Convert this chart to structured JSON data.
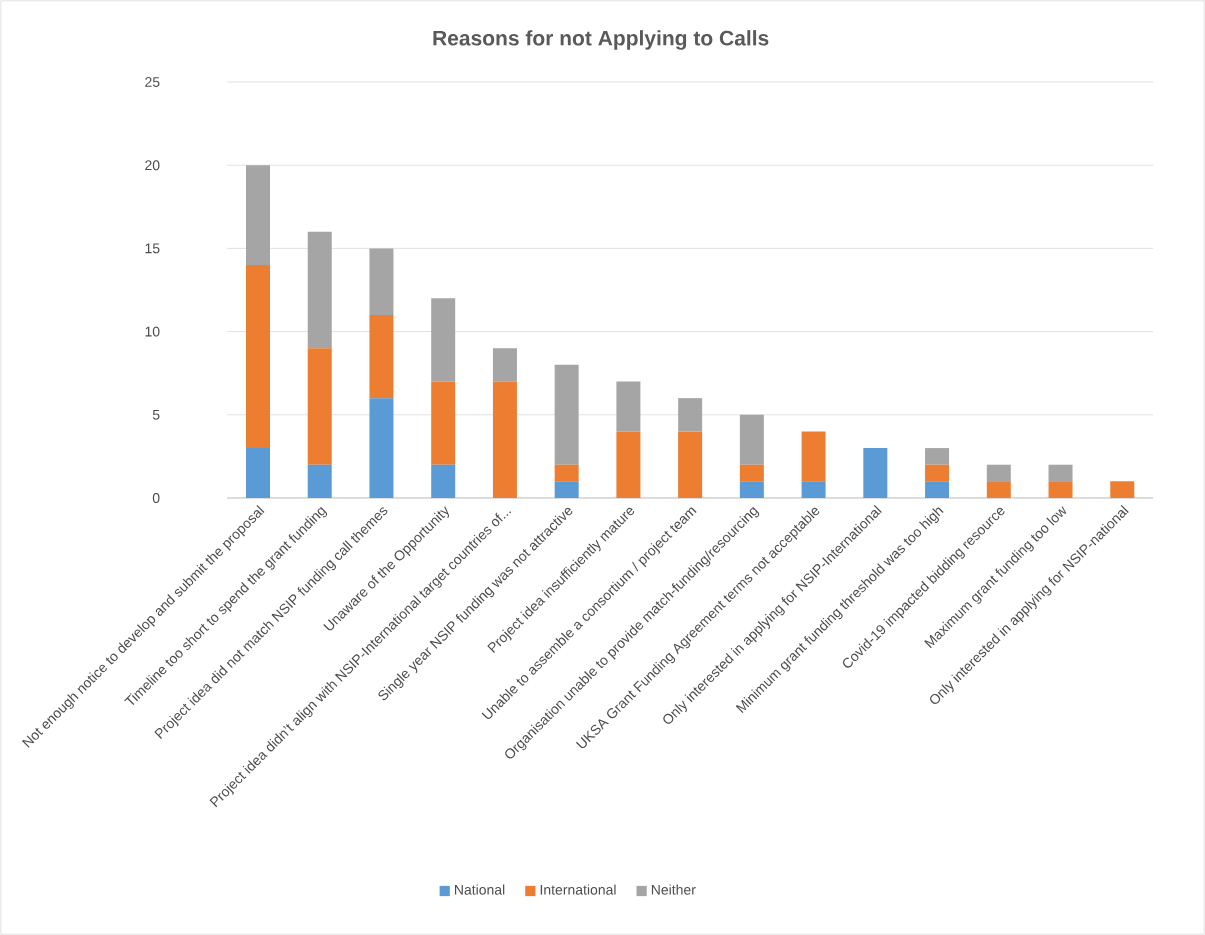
{
  "chart_data": {
    "type": "bar",
    "stacked": true,
    "title": "Reasons for not Applying to Calls",
    "categories": [
      "Not enough notice to develop and submit the proposal",
      "Timeline too short to spend the grant funding",
      "Project idea did not match NSIP funding call themes",
      "Unaware of the Opportunity",
      "Project idea didn’t align with NSIP-International target countries of...",
      "Single year NSIP funding was not attractive",
      "Project idea insufficiently mature",
      "Unable to assemble a consortium / project team",
      "Organisation unable to provide match-funding/resourcing",
      "UKSA Grant Funding Agreement terms not acceptable",
      "Only interested in applying for NSIP-International",
      "Minimum grant funding threshold was too high",
      "Covid-19 impacted bidding resource",
      "Maximum grant funding too low",
      "Only interested in applying for NSIP-national"
    ],
    "series": [
      {
        "name": "National",
        "color": "#5b9bd5",
        "values": [
          3,
          2,
          6,
          2,
          0,
          1,
          0,
          0,
          1,
          1,
          3,
          1,
          0,
          0,
          0
        ]
      },
      {
        "name": "International",
        "color": "#ed7d31",
        "values": [
          11,
          7,
          5,
          5,
          7,
          1,
          4,
          4,
          1,
          3,
          0,
          1,
          1,
          1,
          1
        ]
      },
      {
        "name": "Neither",
        "color": "#a5a5a5",
        "values": [
          6,
          7,
          4,
          5,
          2,
          6,
          3,
          2,
          3,
          0,
          0,
          1,
          1,
          1,
          0
        ]
      }
    ],
    "ylim": [
      0,
      25
    ],
    "yticks": [
      0,
      5,
      10,
      15,
      20,
      25
    ],
    "grid": "y",
    "legend": "bottom"
  }
}
